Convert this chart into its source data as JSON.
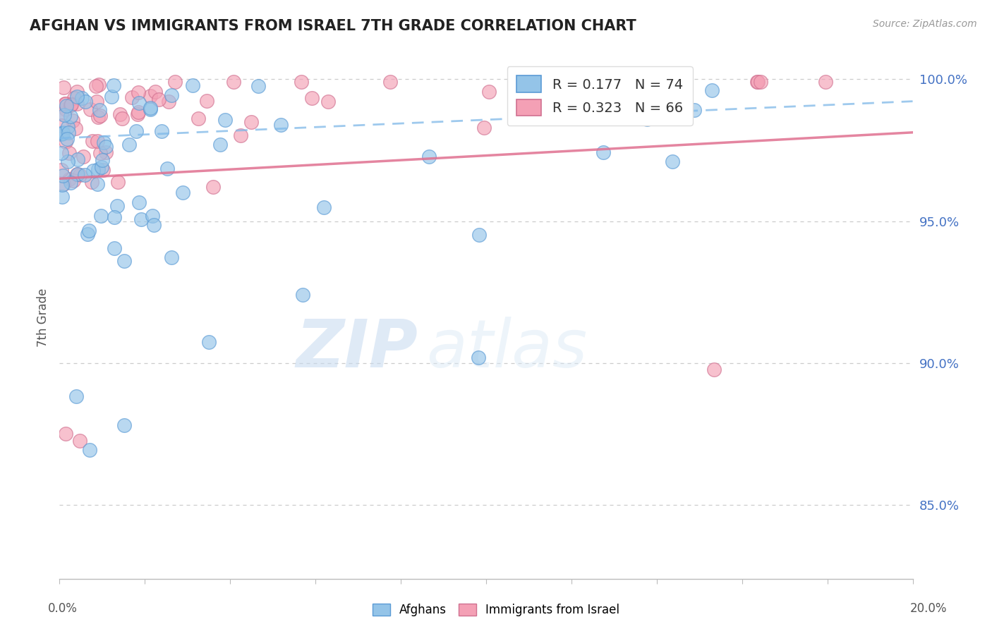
{
  "title": "AFGHAN VS IMMIGRANTS FROM ISRAEL 7TH GRADE CORRELATION CHART",
  "source": "Source: ZipAtlas.com",
  "ylabel": "7th Grade",
  "ylabel_right_ticks": [
    "100.0%",
    "95.0%",
    "90.0%",
    "85.0%"
  ],
  "ylabel_right_values": [
    1.0,
    0.95,
    0.9,
    0.85
  ],
  "xmin": 0.0,
  "xmax": 0.2,
  "ymin": 0.824,
  "ymax": 1.008,
  "r_afghan": 0.177,
  "n_afghan": 74,
  "r_israel": 0.323,
  "n_israel": 66,
  "color_afghan": "#94C4E8",
  "color_israel": "#F4A0B5",
  "color_trendline_afghan": "#E07090",
  "color_trendline_israel": "#7EB8E8",
  "watermark_zip": "ZIP",
  "watermark_atlas": "atlas",
  "legend_r_color": "#4472C4",
  "legend_n_color": "#E05070"
}
